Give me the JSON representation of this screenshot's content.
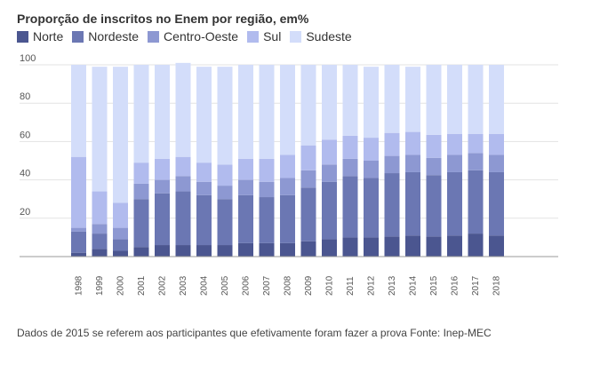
{
  "chart_data": {
    "type": "bar",
    "stacked": true,
    "title": "Proporção de inscritos no Enem por região, em%",
    "xlabel": "",
    "ylabel": "",
    "ylim": [
      0,
      100
    ],
    "yticks": [
      100,
      80,
      60,
      40,
      20
    ],
    "grid": true,
    "legend_position": "top-left",
    "categories": [
      "1998",
      "1999",
      "2000",
      "2001",
      "2002",
      "2003",
      "2004",
      "2005",
      "2006",
      "2007",
      "2008",
      "2009",
      "2010",
      "2011",
      "2012",
      "2013",
      "2014",
      "2015",
      "2016",
      "2017",
      "2018"
    ],
    "series": [
      {
        "name": "Norte",
        "color": "#4b5690",
        "values": [
          2,
          4,
          3,
          5,
          6,
          6,
          6,
          6,
          7,
          7,
          7,
          8,
          9,
          10,
          10,
          10.5,
          11,
          10.5,
          11,
          12,
          11
        ]
      },
      {
        "name": "Nordeste",
        "color": "#6b77b3",
        "values": [
          11,
          8,
          6,
          25,
          27,
          28,
          26,
          24,
          25,
          24,
          25,
          28,
          30,
          32,
          31,
          33,
          33,
          32,
          33,
          33,
          33
        ]
      },
      {
        "name": "Centro-Oeste",
        "color": "#8d98d2",
        "values": [
          2,
          5,
          6,
          8,
          7,
          8,
          7,
          7,
          8,
          8,
          9,
          9,
          9,
          9,
          9,
          9,
          9,
          9,
          9,
          9,
          9
        ]
      },
      {
        "name": "Sul",
        "color": "#b1bbee",
        "values": [
          37,
          17,
          13,
          11,
          11,
          10,
          10,
          11,
          11,
          12,
          12,
          13,
          13,
          12,
          12,
          12,
          12,
          12,
          11,
          10,
          11
        ]
      },
      {
        "name": "Sudeste",
        "color": "#d3ddfa",
        "values": [
          48,
          65,
          71,
          51,
          49,
          49,
          50,
          51,
          49,
          49,
          47,
          42,
          39,
          37,
          37,
          35.5,
          34,
          36.5,
          36,
          36,
          36
        ]
      }
    ]
  },
  "footer": {
    "note": "Dados de 2015 se referem aos participantes que efetivamente foram fazer a prova Fonte: Inep-MEC"
  }
}
